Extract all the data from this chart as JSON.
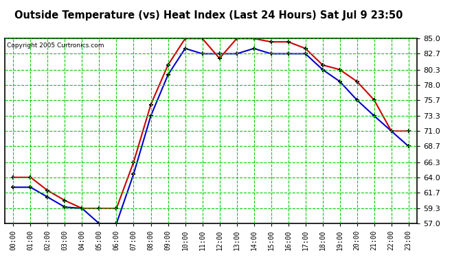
{
  "title": "Outside Temperature (vs) Heat Index (Last 24 Hours) Sat Jul 9 23:50",
  "copyright": "Copyright 2005 Curtronics.com",
  "x_labels": [
    "00:00",
    "01:00",
    "02:00",
    "03:00",
    "04:00",
    "05:00",
    "06:00",
    "07:00",
    "08:00",
    "09:00",
    "10:00",
    "11:00",
    "12:00",
    "13:00",
    "14:00",
    "15:00",
    "16:00",
    "17:00",
    "18:00",
    "19:00",
    "20:00",
    "21:00",
    "22:00",
    "23:00"
  ],
  "outside_temp": [
    62.5,
    62.5,
    61.0,
    59.5,
    59.3,
    57.0,
    57.0,
    64.5,
    73.3,
    79.5,
    83.5,
    82.7,
    82.7,
    82.7,
    83.5,
    82.7,
    82.7,
    82.7,
    80.3,
    78.5,
    75.7,
    73.3,
    71.0,
    68.7
  ],
  "heat_index": [
    64.0,
    64.0,
    62.0,
    60.5,
    59.3,
    59.3,
    59.3,
    66.3,
    75.0,
    81.0,
    85.0,
    85.0,
    82.0,
    85.0,
    85.0,
    84.5,
    84.5,
    83.5,
    81.0,
    80.3,
    78.5,
    75.7,
    71.0,
    71.0
  ],
  "ylim": [
    57.0,
    85.0
  ],
  "yticks": [
    57.0,
    59.3,
    61.7,
    64.0,
    66.3,
    68.7,
    71.0,
    73.3,
    75.7,
    78.0,
    80.3,
    82.7,
    85.0
  ],
  "plot_bg": "#ffffff",
  "grid_color": "#00cc00",
  "outside_temp_color": "#0000cc",
  "heat_index_color": "#cc0000",
  "title_fontsize": 10.5,
  "border_color": "#000000"
}
